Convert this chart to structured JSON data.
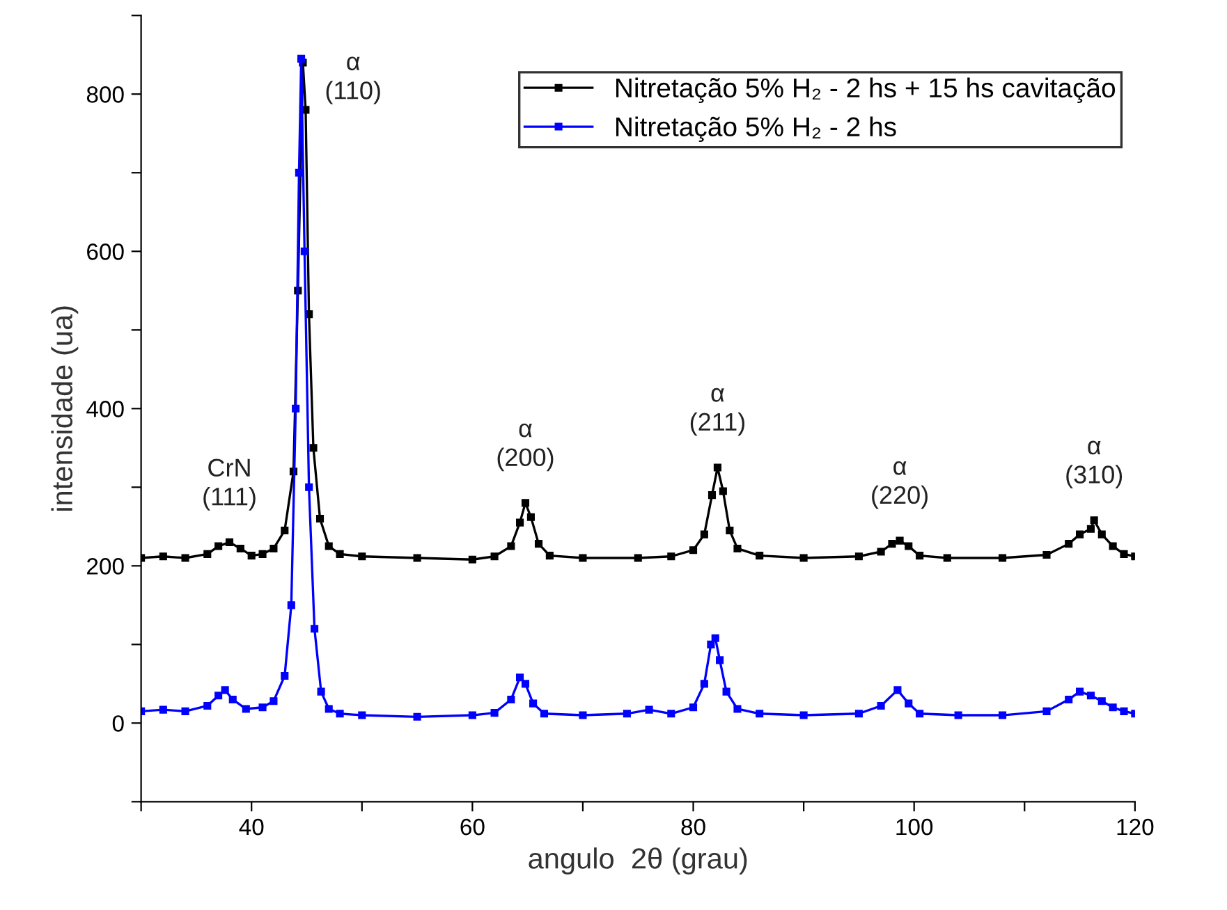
{
  "chart_data": {
    "type": "line",
    "xlabel": "angulo  2θ (grau)",
    "ylabel": "intensidade (ua)",
    "xlim": [
      30,
      120
    ],
    "ylim": [
      -100,
      900
    ],
    "xticks": [
      {
        "value": 30,
        "label": null
      },
      40,
      {
        "value": 50,
        "label": null
      },
      60,
      {
        "value": 70,
        "label": null
      },
      80,
      {
        "value": 90,
        "label": null
      },
      100,
      {
        "value": 110,
        "label": null
      },
      120
    ],
    "yticks": [
      {
        "value": -100,
        "label": null
      },
      0,
      {
        "value": 100,
        "label": null
      },
      200,
      {
        "value": 300,
        "label": null
      },
      400,
      {
        "value": 500,
        "label": null
      },
      600,
      {
        "value": 700,
        "label": null
      },
      800,
      {
        "value": 900,
        "label": null
      }
    ],
    "grid": false,
    "legend": "top right",
    "marker": "square",
    "line_style": "solid",
    "series": [
      {
        "name": "Nitretação 5% H₂ - 2 hs + 15 hs cavitação",
        "color": "#000000",
        "x": [
          30,
          32,
          34,
          36,
          37,
          38,
          39,
          40,
          41,
          42,
          43,
          43.8,
          44.2,
          44.65,
          44.9,
          45.2,
          45.6,
          46.2,
          47,
          48,
          50,
          55,
          60,
          62,
          63.5,
          64.3,
          64.8,
          65.3,
          66,
          67,
          70,
          75,
          78,
          80,
          81,
          81.7,
          82.2,
          82.7,
          83.3,
          84,
          86,
          90,
          95,
          97,
          98,
          98.7,
          99.5,
          100.5,
          103,
          108,
          112,
          114,
          115,
          116,
          116.3,
          117,
          118,
          119,
          120
        ],
        "values": [
          210,
          212,
          210,
          215,
          225,
          230,
          222,
          213,
          215,
          222,
          245,
          320,
          550,
          840,
          780,
          520,
          350,
          260,
          225,
          215,
          212,
          210,
          208,
          212,
          225,
          255,
          280,
          262,
          228,
          213,
          210,
          210,
          212,
          220,
          240,
          290,
          325,
          295,
          245,
          222,
          213,
          210,
          212,
          218,
          228,
          232,
          225,
          213,
          210,
          210,
          214,
          228,
          240,
          247,
          258,
          240,
          225,
          215,
          212
        ]
      },
      {
        "name": "Nitretação 5% H₂ - 2 hs",
        "color": "#0000ff",
        "x": [
          30,
          32,
          34,
          36,
          37,
          37.6,
          38.3,
          39.5,
          41,
          42,
          43,
          43.6,
          44,
          44.3,
          44.5,
          44.8,
          45.2,
          45.7,
          46.3,
          47,
          48,
          50,
          55,
          60,
          62,
          63.5,
          64.3,
          64.8,
          65.5,
          66.5,
          70,
          74,
          76,
          78,
          80,
          81,
          81.6,
          82,
          82.4,
          83,
          84,
          86,
          90,
          95,
          97,
          98.5,
          99.5,
          100.5,
          104,
          108,
          112,
          114,
          115,
          116,
          117,
          118,
          119,
          120
        ],
        "values": [
          15,
          17,
          15,
          22,
          35,
          42,
          30,
          18,
          20,
          28,
          60,
          150,
          400,
          700,
          845,
          600,
          300,
          120,
          40,
          18,
          12,
          10,
          8,
          10,
          13,
          30,
          58,
          50,
          25,
          12,
          10,
          12,
          17,
          12,
          20,
          50,
          100,
          108,
          80,
          40,
          18,
          12,
          10,
          12,
          22,
          42,
          25,
          12,
          10,
          10,
          15,
          30,
          40,
          35,
          28,
          20,
          15,
          12
        ]
      }
    ],
    "annotations": [
      {
        "text": "α\n(110)",
        "x": 44.65,
        "y": 840
      },
      {
        "text": "CrN\n(111)",
        "x": 38,
        "y": 230
      },
      {
        "text": "α\n(200)",
        "x": 64.8,
        "y": 280
      },
      {
        "text": "α\n(211)",
        "x": 82.2,
        "y": 325
      },
      {
        "text": "α\n(220)",
        "x": 98.7,
        "y": 232
      },
      {
        "text": "α\n(310)",
        "x": 116.3,
        "y": 258
      }
    ]
  }
}
